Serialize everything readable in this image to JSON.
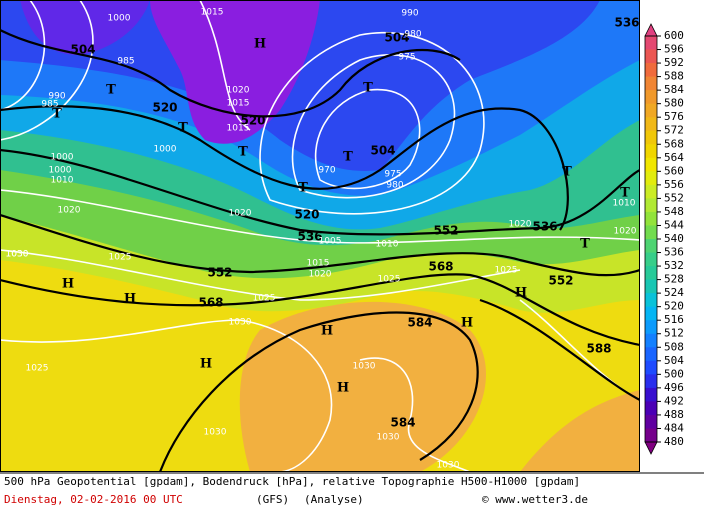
{
  "map": {
    "geopotential_labels": [
      504,
      520,
      520,
      504,
      504,
      520,
      536,
      552,
      552,
      568,
      568,
      584,
      584,
      536,
      552,
      588,
      536
    ],
    "pressure_labels": [
      1000,
      1015,
      1030,
      985,
      990,
      985,
      1000,
      1000,
      1010,
      1020,
      1030,
      1025,
      1020,
      1025,
      1030,
      1025,
      1030,
      1030,
      1030,
      1030,
      1025,
      1025,
      1020,
      1015,
      1020,
      1005,
      970,
      975,
      980,
      975,
      980,
      990,
      1020,
      1015,
      1000,
      1015,
      1010,
      1020,
      1010
    ],
    "highs": [
      "H",
      "H",
      "H",
      "H",
      "H",
      "H",
      "H",
      "H"
    ],
    "lows": [
      "T",
      "T",
      "T",
      "T",
      "T",
      "T",
      "T",
      "T",
      "T",
      "T"
    ]
  },
  "colorbar": {
    "labels": [
      600,
      596,
      592,
      588,
      584,
      580,
      576,
      572,
      568,
      564,
      560,
      556,
      552,
      548,
      544,
      540,
      536,
      532,
      528,
      524,
      520,
      516,
      512,
      508,
      504,
      500,
      496,
      492,
      488,
      484,
      480
    ]
  },
  "footer": {
    "description": "500 hPa Geopotential [gpdam], Bodendruck [hPa], relative Topographie H500-H1000 [gpdam]",
    "date": "Dienstag, 02-02-2016  00 UTC",
    "model": "(GFS)",
    "run": "(Analyse)",
    "credit": "© www.wetter3.de"
  }
}
